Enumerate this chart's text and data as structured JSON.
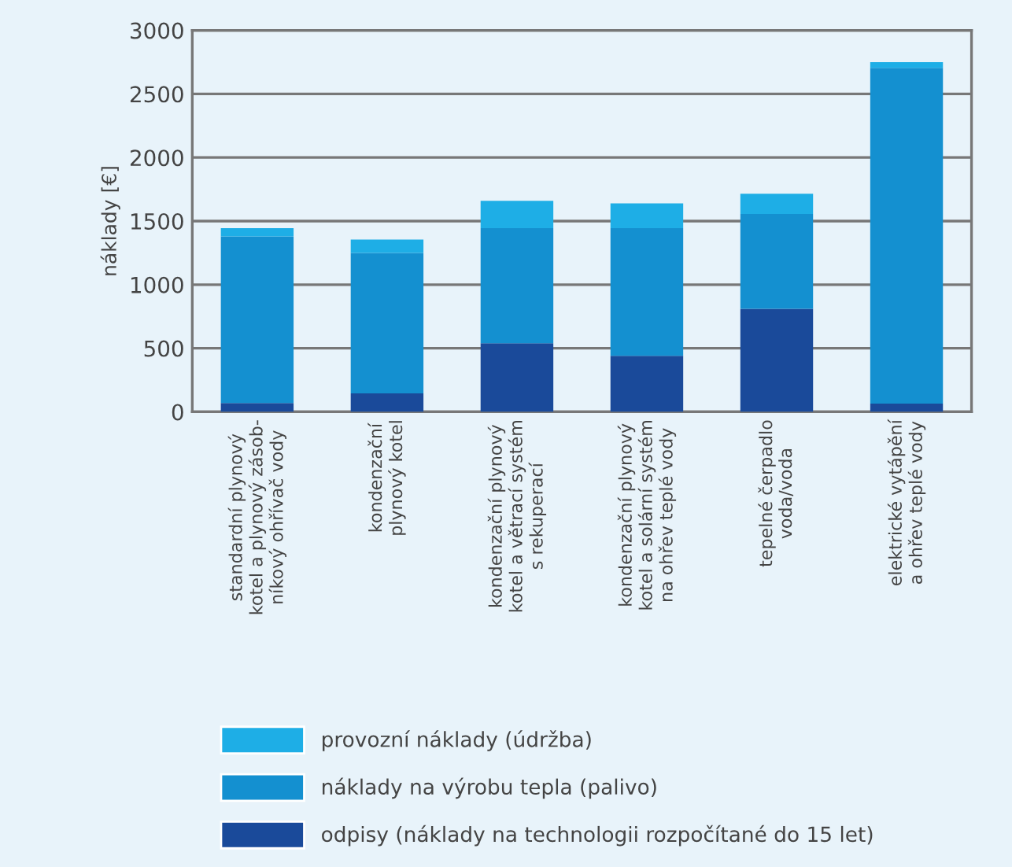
{
  "chart_data": {
    "type": "bar",
    "stacked": true,
    "ylabel": "náklady [€]",
    "categories": [
      "standardní plynový\nkotel a plynový zásob-\nníkový ohřívač vody",
      "kondenzační\nplynový kotel",
      "kondenzační plynový\nkotel a větrací systém\ns rekuperací",
      "kondenzační plynový\nkotel a solární systém\nna ohřev teplé vody",
      "tepelné čerpadlo\nvoda/voda",
      "elektrické vytápění\na ohřev teplé vody"
    ],
    "series": [
      {
        "name": "odpisy (náklady na technologii rozpočítané do 15 let)",
        "color": "#1a4a9a",
        "values": [
          70,
          145,
          540,
          440,
          810,
          65
        ]
      },
      {
        "name": "náklady na výrobu tepla (palivo)",
        "color": "#1490d0",
        "values": [
          1310,
          1105,
          905,
          1005,
          745,
          2640
        ]
      },
      {
        "name": "provozní náklady (údržba)",
        "color": "#1eaee6",
        "values": [
          65,
          105,
          215,
          195,
          160,
          45
        ]
      }
    ],
    "ylim": [
      0,
      3000
    ],
    "yticks": [
      0,
      500,
      1000,
      1500,
      2000,
      2500,
      3000
    ],
    "grid": "y",
    "legend": "bottom"
  }
}
